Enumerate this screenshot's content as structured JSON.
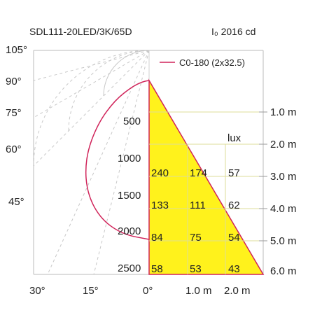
{
  "header": {
    "model": "SDL111-20LED/3K/65D",
    "intensity": "I₀ 2016 cd"
  },
  "legend": {
    "label": "C0-180 (2x32.5)",
    "color": "#d0245a"
  },
  "colors": {
    "cone_fill": "#fff21c",
    "cone_edge": "#d0245a",
    "curve": "#d0245a",
    "grid": "#c8c8c8",
    "text": "#222222"
  },
  "chart_data": [
    {
      "type": "polar",
      "title": "",
      "angle_labels_left": [
        "105°",
        "90°",
        "75°",
        "60°",
        "45°"
      ],
      "angle_labels_bottom": [
        "30°",
        "15°",
        "0°"
      ],
      "radial_labels": [
        "500",
        "1000",
        "1500",
        "2000",
        "2500"
      ],
      "radial_values": [
        500,
        1000,
        1500,
        2000,
        2500
      ],
      "series": [
        {
          "name": "C0-180 (2x32.5)",
          "angle_deg": [
            0,
            10,
            20,
            30,
            40,
            50,
            60,
            70,
            80,
            90
          ],
          "intensity_cd": [
            2016,
            1980,
            1850,
            1600,
            1250,
            850,
            500,
            230,
            80,
            0
          ]
        }
      ]
    },
    {
      "type": "table",
      "title": "",
      "unit_label": "lux",
      "distance_labels": [
        "1.0 m",
        "2.0 m",
        "3.0 m",
        "4.0 m",
        "5.0 m",
        "6.0 m"
      ],
      "width_labels": [
        "0°",
        "1.0 m",
        "2.0 m"
      ],
      "rows": [
        {
          "distance": "3.0 m",
          "values": [
            "240",
            "174",
            "57"
          ]
        },
        {
          "distance": "4.0 m",
          "values": [
            "133",
            "111",
            "62"
          ]
        },
        {
          "distance": "5.0 m",
          "values": [
            "84",
            "75",
            "54"
          ]
        },
        {
          "distance": "6.0 m",
          "values": [
            "58",
            "53",
            "43"
          ]
        }
      ]
    }
  ]
}
